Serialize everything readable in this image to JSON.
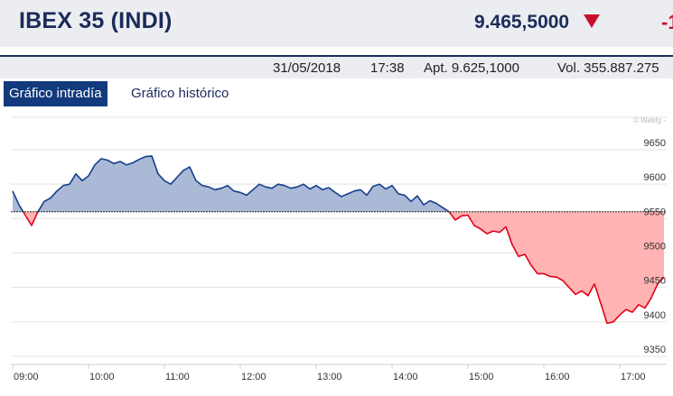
{
  "header": {
    "title": "IBEX 35 (INDI)",
    "price": "9.465,5000",
    "change": "-1"
  },
  "info": {
    "date": "31/05/2018",
    "time": "17:38",
    "open": "Apt. 9.625,1000",
    "volume": "Vol. 355.887.275"
  },
  "tabs": {
    "intraday": "Gráfico intradía",
    "historic": "Gráfico histórico"
  },
  "colors": {
    "up_line": "#163f8c",
    "up_fill": "#a9b9d6",
    "down_line": "#e3001b",
    "down_fill": "#ffb3b3",
    "brand": "#1b2b5a"
  },
  "chart_data": {
    "type": "area",
    "watermark": "© Webfg -",
    "reference": 9560,
    "ylim": [
      9350,
      9650
    ],
    "xlim": [
      "09:00",
      "17:35"
    ],
    "y_ticks": [
      9650,
      9600,
      9550,
      9500,
      9450,
      9400,
      9350
    ],
    "x_ticks": [
      "09:00",
      "10:00",
      "11:00",
      "12:00",
      "13:00",
      "14:00",
      "15:00",
      "16:00",
      "17:00"
    ],
    "x": [
      "09:00",
      "09:05",
      "09:10",
      "09:15",
      "09:20",
      "09:25",
      "09:30",
      "09:35",
      "09:40",
      "09:45",
      "09:50",
      "09:55",
      "10:00",
      "10:05",
      "10:10",
      "10:15",
      "10:20",
      "10:25",
      "10:30",
      "10:35",
      "10:40",
      "10:45",
      "10:50",
      "10:55",
      "11:00",
      "11:05",
      "11:10",
      "11:15",
      "11:20",
      "11:25",
      "11:30",
      "11:35",
      "11:40",
      "11:45",
      "11:50",
      "11:55",
      "12:00",
      "12:05",
      "12:10",
      "12:15",
      "12:20",
      "12:25",
      "12:30",
      "12:35",
      "12:40",
      "12:45",
      "12:50",
      "12:55",
      "13:00",
      "13:05",
      "13:10",
      "13:15",
      "13:20",
      "13:25",
      "13:30",
      "13:35",
      "13:40",
      "13:45",
      "13:50",
      "13:55",
      "14:00",
      "14:05",
      "14:10",
      "14:15",
      "14:20",
      "14:25",
      "14:30",
      "14:35",
      "14:40",
      "14:45",
      "14:50",
      "14:55",
      "15:00",
      "15:05",
      "15:10",
      "15:15",
      "15:20",
      "15:25",
      "15:30",
      "15:35",
      "15:40",
      "15:45",
      "15:50",
      "15:55",
      "16:00",
      "16:05",
      "16:10",
      "16:15",
      "16:20",
      "16:25",
      "16:30",
      "16:35",
      "16:40",
      "16:45",
      "16:50",
      "16:55",
      "17:00",
      "17:05",
      "17:10",
      "17:15",
      "17:20",
      "17:25",
      "17:30",
      "17:35"
    ],
    "values": [
      9590,
      9570,
      9555,
      9540,
      9560,
      9575,
      9580,
      9590,
      9598,
      9600,
      9615,
      9605,
      9612,
      9628,
      9637,
      9635,
      9630,
      9633,
      9628,
      9631,
      9636,
      9640,
      9641,
      9615,
      9605,
      9600,
      9610,
      9620,
      9625,
      9605,
      9598,
      9596,
      9592,
      9594,
      9598,
      9590,
      9588,
      9584,
      9592,
      9600,
      9596,
      9594,
      9600,
      9598,
      9594,
      9596,
      9600,
      9593,
      9598,
      9592,
      9595,
      9588,
      9582,
      9586,
      9590,
      9592,
      9584,
      9597,
      9600,
      9593,
      9598,
      9586,
      9584,
      9575,
      9583,
      9570,
      9576,
      9572,
      9566,
      9560,
      9548,
      9554,
      9555,
      9540,
      9535,
      9528,
      9532,
      9530,
      9538,
      9512,
      9495,
      9498,
      9482,
      9470,
      9470,
      9466,
      9465,
      9460,
      9450,
      9440,
      9445,
      9438,
      9455,
      9427,
      9398,
      9400,
      9410,
      9418,
      9414,
      9425,
      9420,
      9435,
      9455,
      9465
    ]
  }
}
